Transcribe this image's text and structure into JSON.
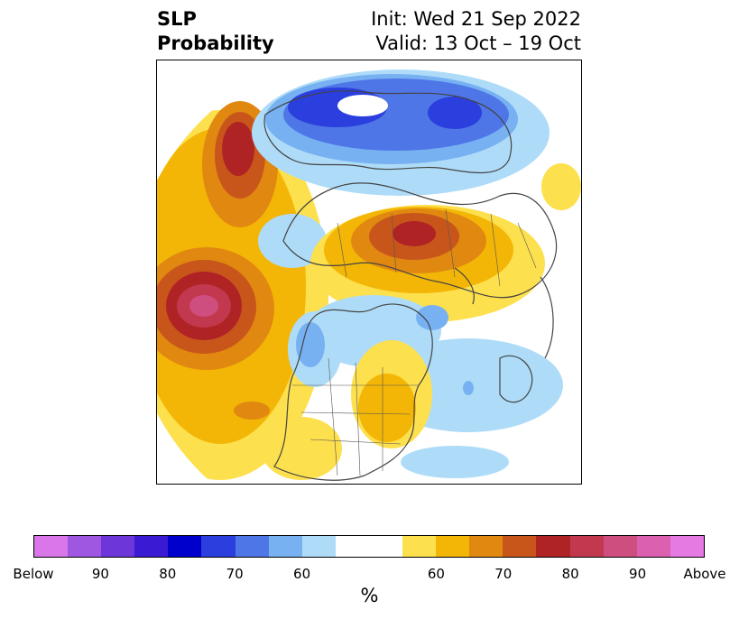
{
  "title": {
    "left_line1": "SLP",
    "left_line2": "Probability",
    "right_line1": "Init: Wed 21 Sep 2022",
    "right_line2": "Valid: 13 Oct – 19 Oct"
  },
  "colorbar": {
    "unit": "%",
    "colors": [
      "#d977e8",
      "#9f56e0",
      "#6d36d8",
      "#3b1ad4",
      "#0000cc",
      "#2a3fde",
      "#4f76e6",
      "#77b1f2",
      "#aedcf8",
      "#ffffff",
      "#ffffff",
      "#fde04d",
      "#f3b607",
      "#e08810",
      "#c8561b",
      "#b02325",
      "#c2384f",
      "#ce4f7f",
      "#dc60b0",
      "#e57ae2"
    ],
    "tick_labels": [
      "Below",
      "90",
      "80",
      "70",
      "60",
      "60",
      "70",
      "80",
      "90",
      "Above"
    ]
  },
  "legend_colors": {
    "below_strong": "#2a3fde",
    "below_mid": "#4f76e6",
    "below_weak": "#aedcf8",
    "above_weak": "#fde04d",
    "above_mid": "#f3b607",
    "above_strong": "#b02325",
    "above_max": "#ce4f7f"
  }
}
